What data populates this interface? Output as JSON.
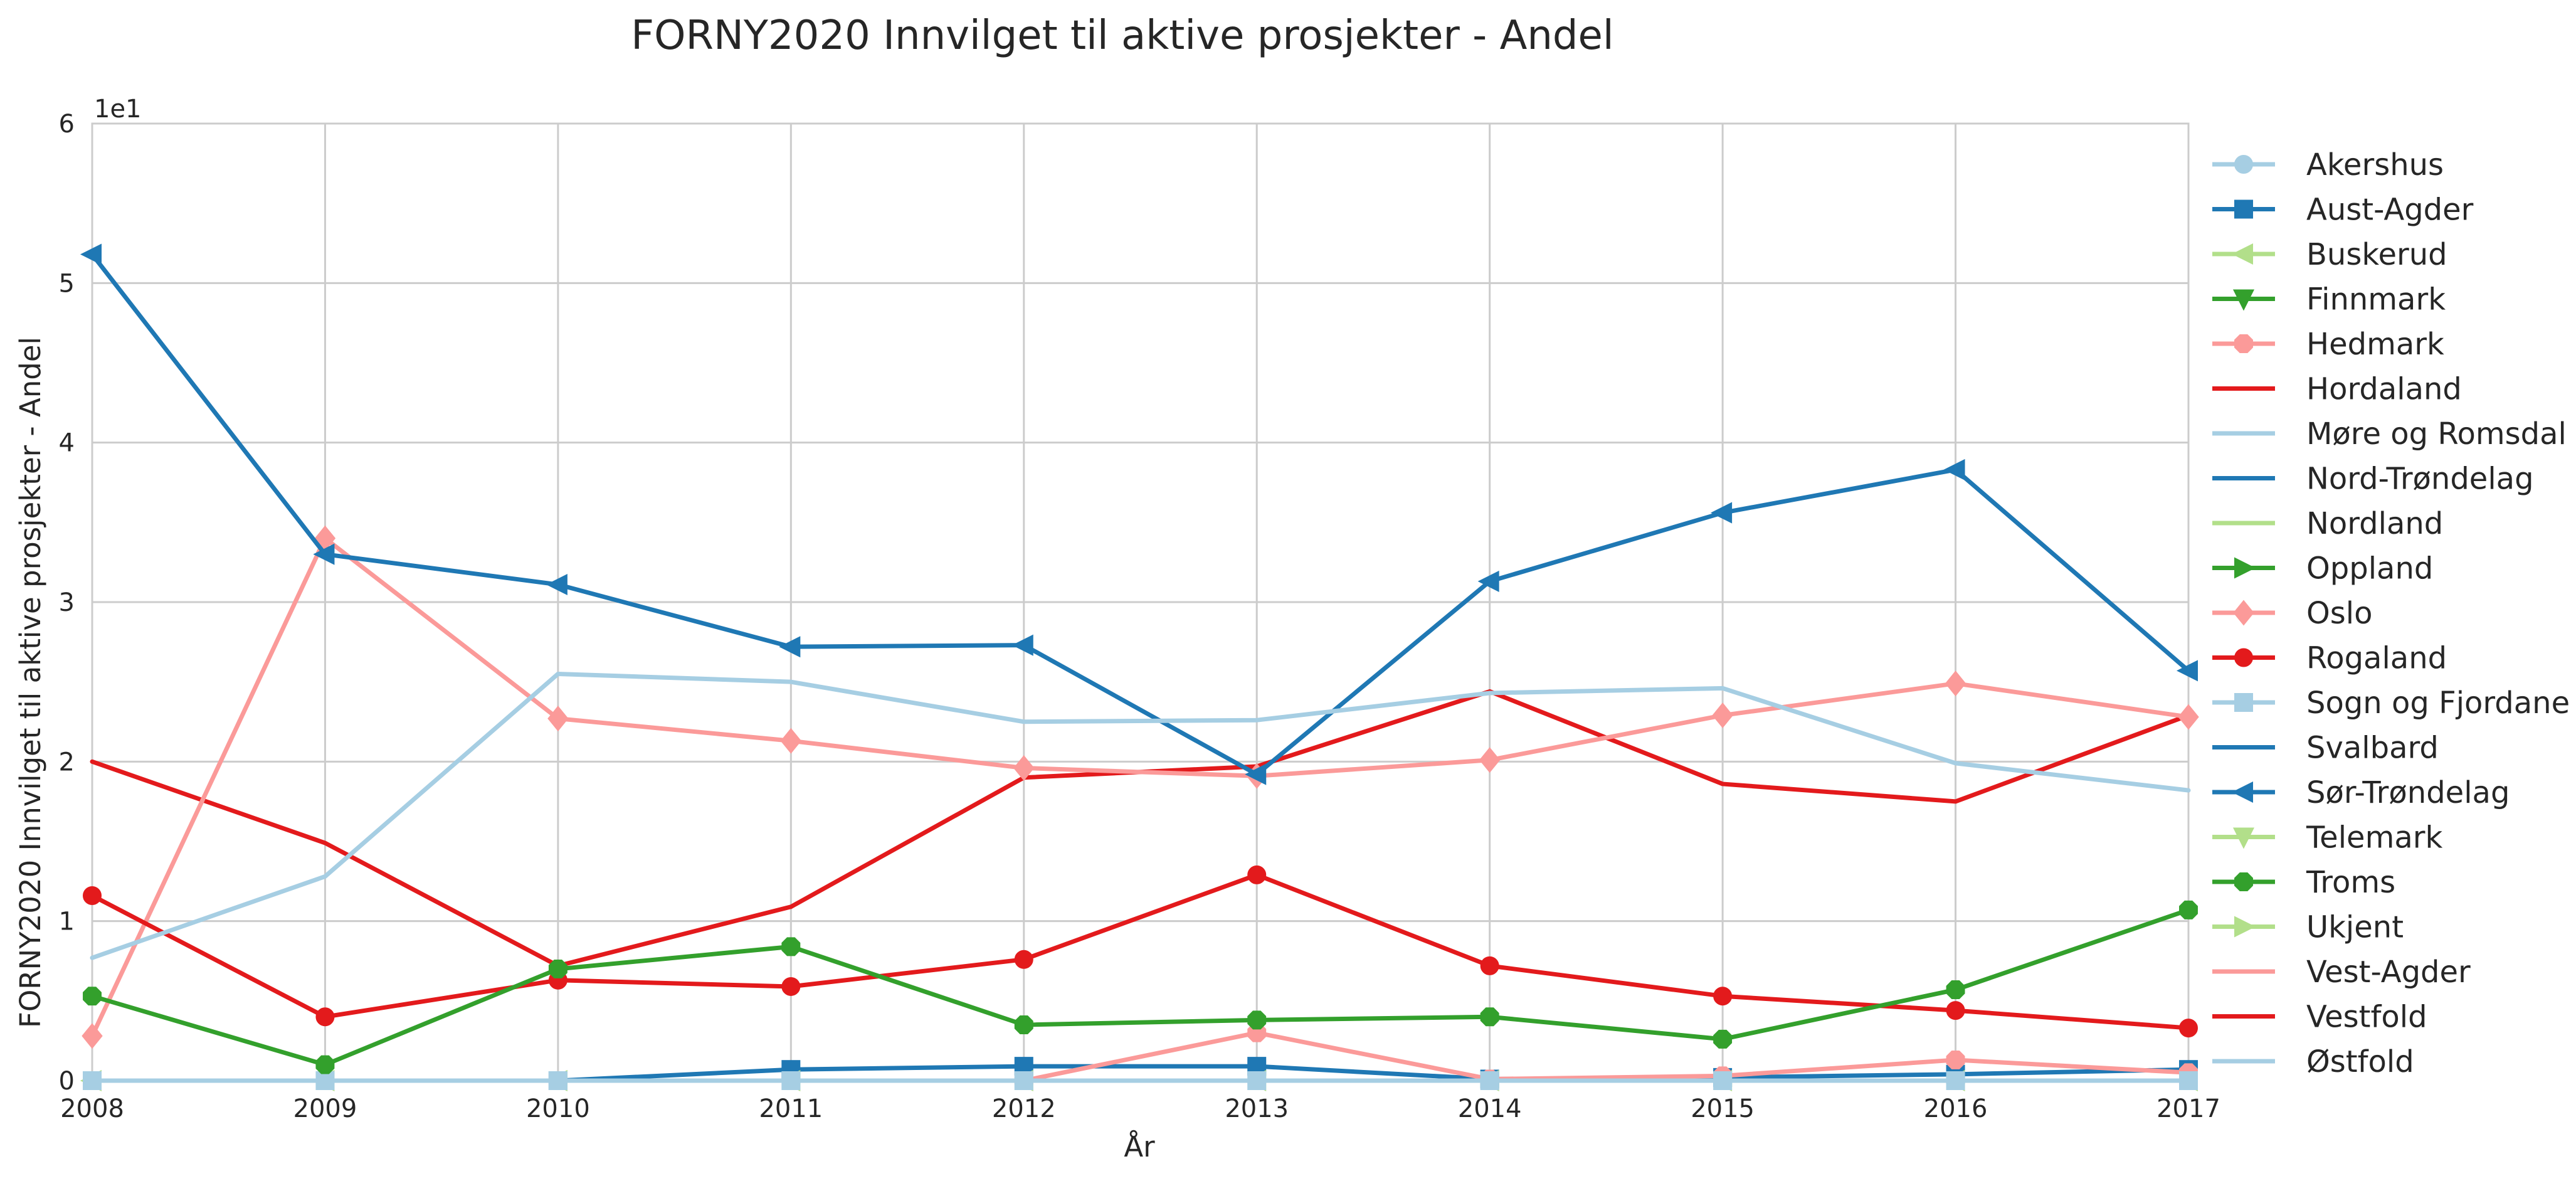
{
  "chart_data": {
    "type": "line",
    "title": "FORNY2020 Innvilget til aktive prosjekter - Andel",
    "xlabel": "År",
    "ylabel": "FORNY2020 Innvilget til aktive prosjekter - Andel",
    "y_offset_text": "1e1",
    "x": [
      2008,
      2009,
      2010,
      2011,
      2012,
      2013,
      2014,
      2015,
      2016,
      2017
    ],
    "xlim": [
      2008,
      2017
    ],
    "ylim": [
      0,
      60
    ],
    "yticks": [
      0,
      10,
      20,
      30,
      40,
      50,
      60
    ],
    "ytick_labels": [
      "0",
      "1",
      "2",
      "3",
      "4",
      "5",
      "6"
    ],
    "grid": true,
    "legend_position": "right, outside",
    "series": [
      {
        "name": "Akershus",
        "color": "#a6cee3",
        "marker": "circle",
        "values": [
          null,
          null,
          null,
          null,
          null,
          null,
          null,
          null,
          null,
          null
        ]
      },
      {
        "name": "Aust-Agder",
        "color": "#1f78b4",
        "marker": "square",
        "values": [
          null,
          null,
          0,
          0.7,
          0.9,
          0.9,
          0.1,
          0.2,
          0.4,
          0.7
        ]
      },
      {
        "name": "Buskerud",
        "color": "#b2df8a",
        "marker": "triangle-left",
        "values": [
          0,
          0,
          0,
          0,
          0,
          0,
          0,
          0,
          0,
          0
        ]
      },
      {
        "name": "Finnmark",
        "color": "#33a02c",
        "marker": "triangle-down",
        "values": [
          null,
          null,
          null,
          null,
          null,
          null,
          null,
          null,
          null,
          null
        ]
      },
      {
        "name": "Hedmark",
        "color": "#fb9a99",
        "marker": "octagon",
        "values": [
          null,
          null,
          null,
          null,
          0,
          3.0,
          0.1,
          0.3,
          1.3,
          0.5
        ]
      },
      {
        "name": "Hordaland",
        "color": "#e31a1c",
        "marker": "none",
        "values": [
          20.0,
          14.9,
          7.2,
          10.9,
          19.0,
          19.7,
          24.4,
          18.6,
          17.5,
          22.9
        ]
      },
      {
        "name": "Møre og Romsdal",
        "color": "#a6cee3",
        "marker": "none",
        "values": [
          null,
          null,
          null,
          null,
          null,
          null,
          null,
          null,
          null,
          null
        ]
      },
      {
        "name": "Nord-Trøndelag",
        "color": "#1f78b4",
        "marker": "none",
        "values": [
          null,
          null,
          null,
          null,
          null,
          null,
          null,
          null,
          null,
          null
        ]
      },
      {
        "name": "Nordland",
        "color": "#b2df8a",
        "marker": "none",
        "values": [
          null,
          null,
          null,
          null,
          null,
          null,
          null,
          null,
          null,
          null
        ]
      },
      {
        "name": "Oppland",
        "color": "#33a02c",
        "marker": "triangle-right",
        "values": [
          null,
          null,
          null,
          null,
          null,
          null,
          null,
          null,
          null,
          null
        ]
      },
      {
        "name": "Oslo",
        "color": "#fb9a99",
        "marker": "diamond",
        "values": [
          2.8,
          34.0,
          22.7,
          21.3,
          19.6,
          19.1,
          20.1,
          22.9,
          24.9,
          22.8
        ]
      },
      {
        "name": "Rogaland",
        "color": "#e31a1c",
        "marker": "circle",
        "values": [
          11.6,
          4.0,
          6.3,
          5.9,
          7.6,
          12.9,
          7.2,
          5.3,
          4.4,
          3.3
        ]
      },
      {
        "name": "Sogn og Fjordane",
        "color": "#a6cee3",
        "marker": "square",
        "values": [
          0,
          0,
          0,
          0,
          0,
          0,
          0,
          0,
          0,
          0
        ]
      },
      {
        "name": "Svalbard",
        "color": "#1f78b4",
        "marker": "none",
        "values": [
          null,
          null,
          null,
          null,
          null,
          null,
          null,
          null,
          null,
          null
        ]
      },
      {
        "name": "Sør-Trøndelag",
        "color": "#1f78b4",
        "marker": "triangle-left",
        "values": [
          51.8,
          33.0,
          31.1,
          27.2,
          27.3,
          19.2,
          31.3,
          35.6,
          38.3,
          25.7
        ]
      },
      {
        "name": "Telemark",
        "color": "#b2df8a",
        "marker": "triangle-down",
        "values": [
          null,
          null,
          null,
          null,
          null,
          null,
          null,
          null,
          null,
          null
        ]
      },
      {
        "name": "Troms",
        "color": "#33a02c",
        "marker": "octagon",
        "values": [
          5.3,
          1.0,
          7.0,
          8.4,
          3.5,
          3.8,
          4.0,
          2.6,
          5.7,
          10.7
        ]
      },
      {
        "name": "Ukjent",
        "color": "#b2df8a",
        "marker": "triangle-right",
        "values": [
          null,
          null,
          null,
          null,
          null,
          null,
          null,
          null,
          null,
          null
        ]
      },
      {
        "name": "Vest-Agder",
        "color": "#fb9a99",
        "marker": "none",
        "values": [
          null,
          null,
          null,
          null,
          null,
          null,
          null,
          null,
          null,
          null
        ]
      },
      {
        "name": "Vestfold",
        "color": "#e31a1c",
        "marker": "none",
        "values": [
          null,
          null,
          null,
          null,
          null,
          null,
          null,
          null,
          null,
          null
        ]
      },
      {
        "name": "Østfold",
        "color": "#a6cee3",
        "marker": "none",
        "values": [
          7.7,
          12.8,
          25.5,
          25.0,
          22.5,
          22.6,
          24.3,
          24.6,
          19.9,
          18.2
        ]
      }
    ]
  }
}
